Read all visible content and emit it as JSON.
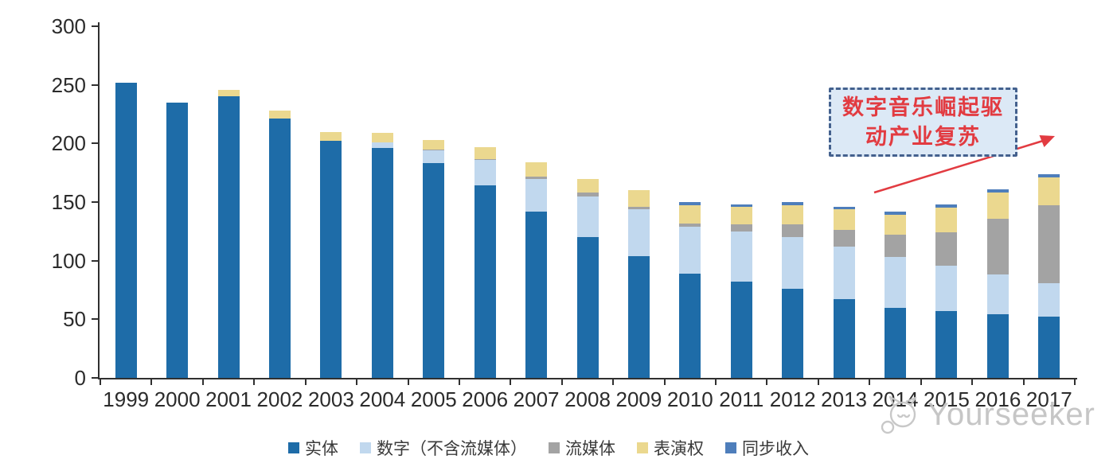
{
  "chart_data": {
    "type": "bar",
    "stacked": true,
    "title": "",
    "categories": [
      "1999",
      "2000",
      "2001",
      "2002",
      "2003",
      "2004",
      "2005",
      "2006",
      "2007",
      "2008",
      "2009",
      "2010",
      "2011",
      "2012",
      "2013",
      "2014",
      "2015",
      "2016",
      "2017"
    ],
    "series": [
      {
        "name": "实体",
        "color": "#1e6ca8",
        "values": [
          252,
          235,
          240,
          221,
          202,
          196,
          183,
          164,
          142,
          120,
          104,
          89,
          82,
          76,
          67,
          60,
          57,
          54,
          52
        ]
      },
      {
        "name": "数字（不含流媒体）",
        "color": "#c1d8ee",
        "values": [
          0,
          0,
          0,
          0,
          0,
          5,
          11,
          22,
          28,
          35,
          40,
          40,
          43,
          44,
          45,
          43,
          39,
          34,
          29
        ]
      },
      {
        "name": "流媒体",
        "color": "#a3a3a3",
        "values": [
          0,
          0,
          0,
          0,
          0,
          0,
          1,
          1,
          2,
          3,
          2,
          3,
          6,
          11,
          14,
          19,
          28,
          48,
          66
        ]
      },
      {
        "name": "表演权",
        "color": "#ebd88f",
        "values": [
          0,
          0,
          6,
          7,
          8,
          8,
          8,
          10,
          12,
          12,
          14,
          15,
          15,
          16,
          18,
          17,
          21,
          22,
          24
        ]
      },
      {
        "name": "同步收入",
        "color": "#4e7ebb",
        "values": [
          0,
          0,
          0,
          0,
          0,
          0,
          0,
          0,
          0,
          0,
          0,
          3,
          2,
          3,
          2,
          3,
          3,
          3,
          3
        ]
      }
    ],
    "totals": [
      252,
      235,
      246,
      228,
      210,
      209,
      203,
      197,
      184,
      170,
      160,
      150,
      148,
      150,
      146,
      142,
      148,
      161,
      174
    ],
    "xlabel": "",
    "ylabel": "",
    "ylim": [
      0,
      300
    ],
    "yticks": [
      0,
      50,
      100,
      150,
      200,
      250,
      300
    ],
    "grid": false,
    "legend_position": "bottom",
    "axis_color": "#303030"
  },
  "annotation": {
    "text": "数字音乐崛起驱动产业复苏",
    "line1": "数字音乐崛起驱",
    "line2": "动产业复苏",
    "border_color": "#44618e",
    "fill_color": "#dce9f6",
    "text_color": "#e23b41",
    "arrow_color": "#e23b41"
  },
  "watermark": {
    "text": "Yourseeker",
    "logo": "cat-logo"
  }
}
